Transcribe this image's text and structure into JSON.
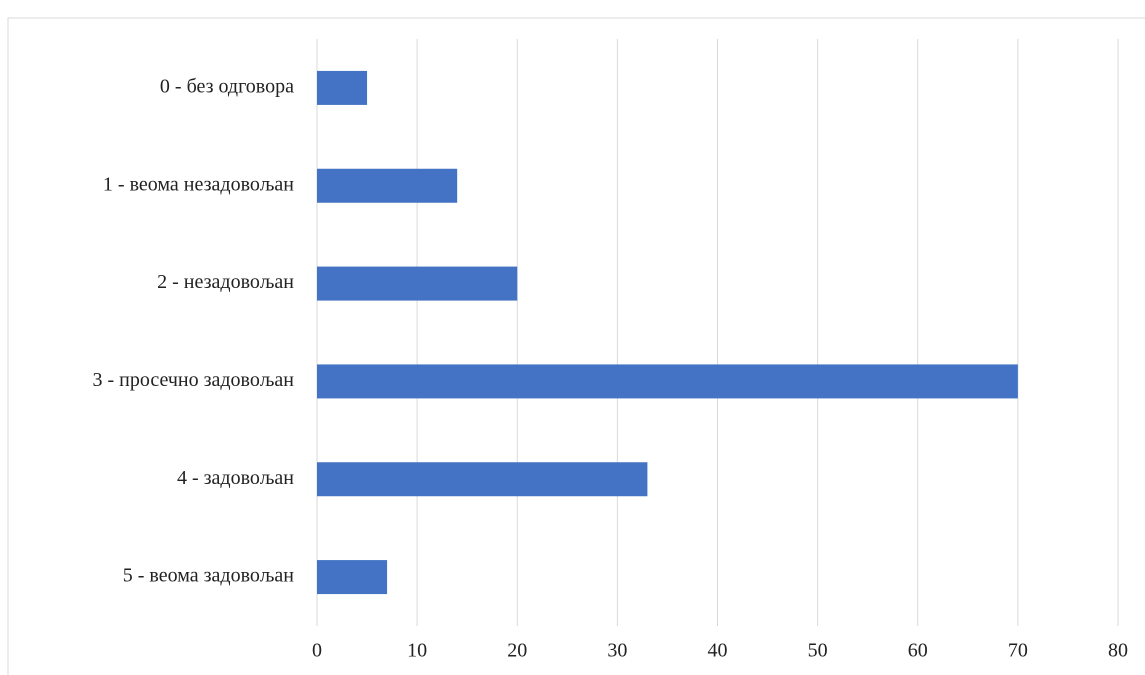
{
  "chart_data": {
    "type": "bar",
    "orientation": "horizontal",
    "categories": [
      "0 - без одговора",
      "1 - веома незадовољан",
      "2 - незадовољан",
      "3 - просечно задовољан",
      "4 - задовољан",
      "5 - веома задовољан"
    ],
    "values": [
      5,
      14,
      20,
      70,
      33,
      7
    ],
    "color": "#4472c4",
    "xlim": [
      0,
      80
    ],
    "xticks": [
      0,
      10,
      20,
      30,
      40,
      50,
      60,
      70,
      80
    ],
    "grid": true
  }
}
